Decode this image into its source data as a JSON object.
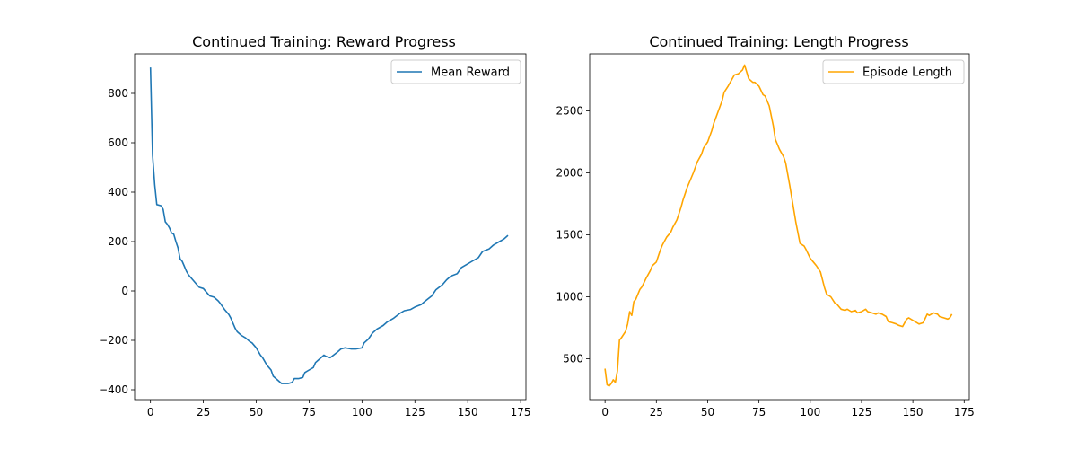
{
  "chart_data": [
    {
      "type": "line",
      "title": "Continued Training: Reward Progress",
      "xlabel": "",
      "ylabel": "",
      "xlim": [
        -7.5,
        177.5
      ],
      "ylim": [
        -440,
        960
      ],
      "xticks": [
        0,
        25,
        50,
        75,
        100,
        125,
        150,
        175
      ],
      "yticks": [
        -400,
        -200,
        0,
        200,
        400,
        600,
        800
      ],
      "grid": false,
      "legend": "top-right",
      "series": [
        {
          "name": "Mean Reward",
          "color": "#1f77b4",
          "x": [
            0,
            1,
            2,
            3,
            5,
            6,
            7,
            8,
            9,
            10,
            11,
            12,
            13,
            14,
            15,
            16,
            17,
            18,
            20,
            22,
            23,
            25,
            27,
            28,
            30,
            32,
            33,
            35,
            37,
            38,
            40,
            41,
            43,
            45,
            47,
            48,
            50,
            52,
            53,
            55,
            56,
            57,
            58,
            60,
            62,
            63,
            65,
            67,
            68,
            70,
            72,
            73,
            75,
            77,
            78,
            80,
            82,
            83,
            85,
            88,
            90,
            92,
            95,
            97,
            100,
            101,
            103,
            105,
            107,
            110,
            112,
            115,
            118,
            120,
            123,
            125,
            128,
            130,
            133,
            135,
            138,
            140,
            142,
            145,
            147,
            150,
            152,
            155,
            157,
            160,
            162,
            165,
            167,
            169
          ],
          "y": [
            905,
            550,
            430,
            350,
            345,
            330,
            280,
            270,
            255,
            235,
            230,
            200,
            175,
            130,
            120,
            100,
            80,
            65,
            45,
            25,
            15,
            10,
            -10,
            -20,
            -25,
            -40,
            -50,
            -75,
            -95,
            -110,
            -150,
            -165,
            -180,
            -190,
            -205,
            -210,
            -230,
            -260,
            -270,
            -300,
            -310,
            -320,
            -345,
            -360,
            -375,
            -375,
            -375,
            -370,
            -355,
            -355,
            -350,
            -330,
            -320,
            -310,
            -290,
            -275,
            -260,
            -265,
            -270,
            -250,
            -235,
            -230,
            -235,
            -235,
            -230,
            -210,
            -195,
            -170,
            -155,
            -140,
            -125,
            -110,
            -90,
            -80,
            -75,
            -65,
            -55,
            -40,
            -20,
            5,
            25,
            45,
            60,
            70,
            95,
            110,
            120,
            135,
            160,
            170,
            185,
            200,
            210,
            225
          ]
        }
      ]
    },
    {
      "type": "line",
      "title": "Continued Training: Length Progress",
      "xlabel": "",
      "ylabel": "",
      "xlim": [
        -7.5,
        177.5
      ],
      "ylim": [
        170,
        2960
      ],
      "xticks": [
        0,
        25,
        50,
        75,
        100,
        125,
        150,
        175
      ],
      "yticks": [
        500,
        1000,
        1500,
        2000,
        2500
      ],
      "grid": false,
      "legend": "top-right",
      "series": [
        {
          "name": "Episode Length",
          "color": "#ffa500",
          "x": [
            0,
            1,
            2,
            3,
            4,
            5,
            6,
            7,
            8,
            10,
            11,
            12,
            13,
            14,
            15,
            16,
            17,
            18,
            20,
            22,
            23,
            25,
            27,
            28,
            30,
            32,
            33,
            35,
            37,
            38,
            40,
            42,
            43,
            45,
            47,
            48,
            50,
            52,
            53,
            55,
            57,
            58,
            60,
            62,
            63,
            65,
            67,
            68,
            70,
            72,
            73,
            75,
            77,
            78,
            80,
            82,
            83,
            85,
            87,
            88,
            90,
            92,
            93,
            95,
            97,
            98,
            100,
            102,
            103,
            105,
            107,
            108,
            110,
            112,
            113,
            115,
            117,
            118,
            120,
            122,
            123,
            125,
            127,
            128,
            130,
            132,
            133,
            135,
            137,
            138,
            140,
            142,
            143,
            145,
            147,
            148,
            150,
            152,
            153,
            155,
            157,
            158,
            160,
            162,
            163,
            165,
            167,
            168,
            169
          ],
          "y": [
            420,
            290,
            280,
            300,
            330,
            310,
            400,
            650,
            670,
            720,
            780,
            880,
            850,
            960,
            980,
            1020,
            1060,
            1080,
            1150,
            1210,
            1250,
            1280,
            1380,
            1420,
            1480,
            1520,
            1560,
            1620,
            1720,
            1780,
            1880,
            1960,
            2000,
            2090,
            2150,
            2200,
            2250,
            2340,
            2400,
            2490,
            2580,
            2650,
            2700,
            2760,
            2790,
            2800,
            2830,
            2870,
            2760,
            2730,
            2730,
            2700,
            2630,
            2620,
            2540,
            2380,
            2270,
            2190,
            2130,
            2080,
            1900,
            1700,
            1600,
            1430,
            1410,
            1380,
            1310,
            1270,
            1250,
            1200,
            1070,
            1020,
            1000,
            950,
            940,
            900,
            890,
            900,
            880,
            890,
            870,
            880,
            900,
            880,
            870,
            860,
            870,
            860,
            840,
            800,
            790,
            780,
            770,
            760,
            820,
            830,
            810,
            790,
            780,
            790,
            860,
            850,
            870,
            860,
            840,
            830,
            820,
            830,
            860
          ]
        }
      ]
    }
  ]
}
